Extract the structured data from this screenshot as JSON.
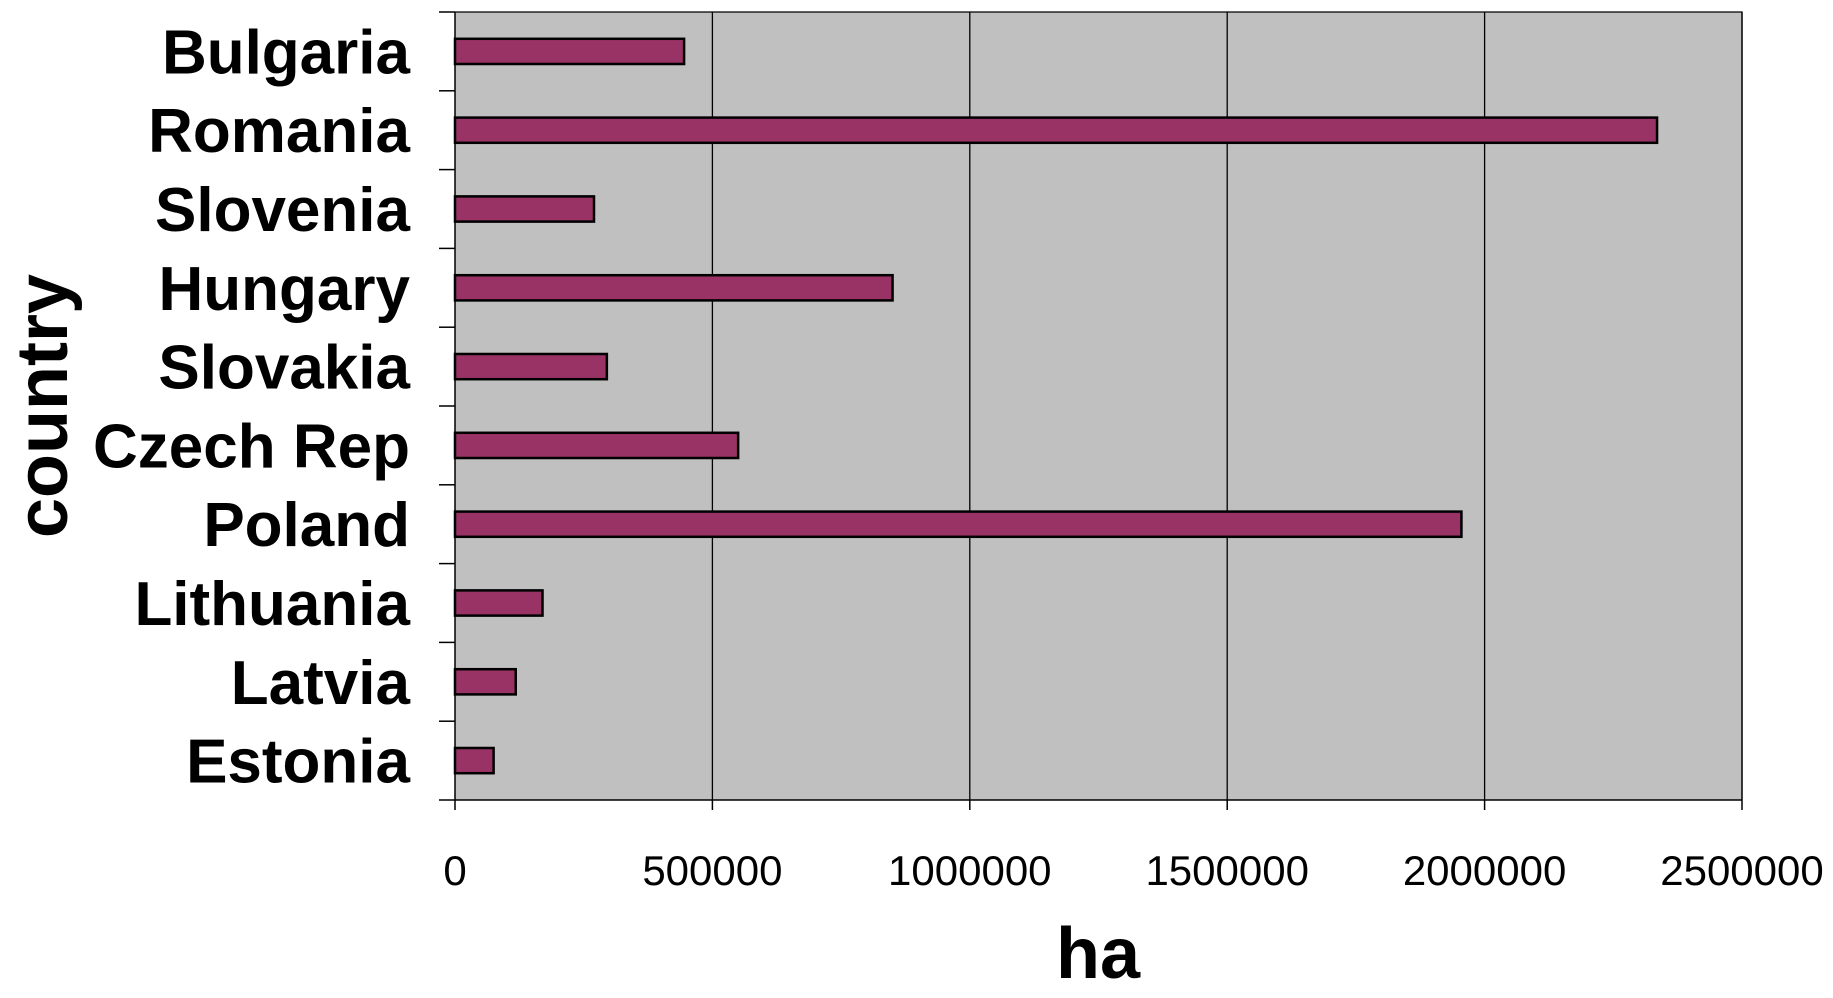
{
  "chart_data": {
    "type": "bar",
    "orientation": "horizontal",
    "categories": [
      "Bulgaria",
      "Romania",
      "Slovenia",
      "Hungary",
      "Slovakia",
      "Czech Rep",
      "Poland",
      "Lithuania",
      "Latvia",
      "Estonia"
    ],
    "values": [
      445000,
      2335000,
      270000,
      850000,
      295000,
      550000,
      1955000,
      170000,
      118000,
      75000
    ],
    "xlabel": "ha",
    "ylabel": "country",
    "xlim": [
      0,
      2500000
    ],
    "xticks": [
      "0",
      "500000",
      "1000000",
      "1500000",
      "2000000",
      "2500000"
    ],
    "grid": "vertical",
    "legend": "none",
    "colors": {
      "bar_fill": "#993366",
      "bar_stroke": "#000000",
      "plot_background": "#c0c0c0",
      "gridline": "#000000"
    }
  }
}
